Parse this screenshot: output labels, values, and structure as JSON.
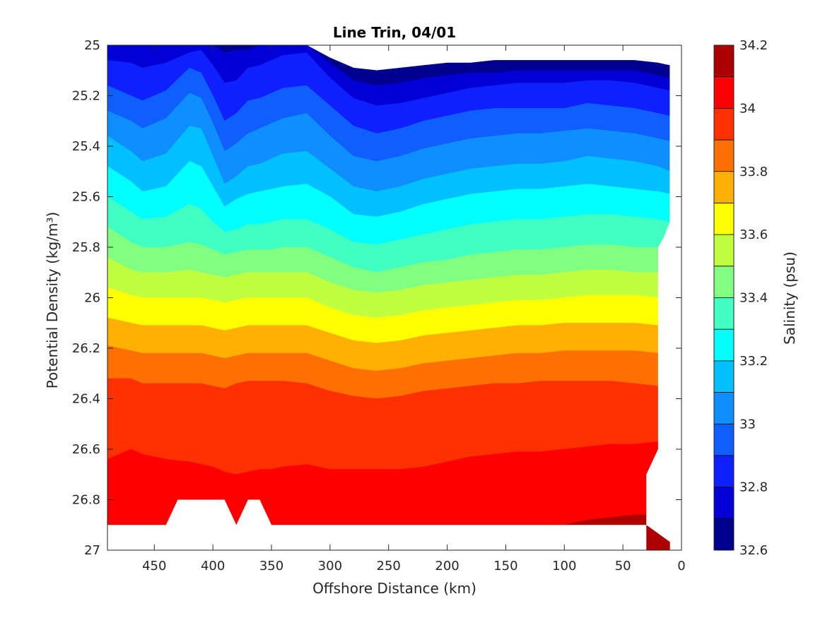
{
  "chart_data": {
    "type": "contour",
    "title": "Line Trin, 04/01",
    "xlabel": "Offshore Distance (km)",
    "ylabel": "Potential Density (kg/m³)",
    "x_reversed": true,
    "y_reversed": true,
    "xlim": [
      0,
      490
    ],
    "ylim": [
      25,
      27
    ],
    "xticks": [
      "450",
      "400",
      "350",
      "300",
      "250",
      "200",
      "150",
      "100",
      "50",
      "0"
    ],
    "yticks": [
      "25",
      "25.2",
      "25.4",
      "25.6",
      "25.8",
      "26",
      "26.2",
      "26.4",
      "26.6",
      "26.8",
      "27"
    ],
    "colorbar_label": "Salinity (psu)",
    "colorbar_ticks": [
      "34.2",
      "34",
      "33.8",
      "33.6",
      "33.4",
      "33.2",
      "33",
      "32.8",
      "32.6"
    ],
    "levels": [
      32.6,
      32.7,
      32.8,
      32.9,
      33.0,
      33.1,
      33.2,
      33.3,
      33.4,
      33.5,
      33.6,
      33.7,
      33.8,
      33.9,
      34.0,
      34.1,
      34.2
    ],
    "colors": [
      "#00008f",
      "#0000d6",
      "#0f20ff",
      "#0f5fff",
      "#0f8fff",
      "#00c0ff",
      "#00ffff",
      "#40ffc0",
      "#80ff80",
      "#c0ff40",
      "#ffff00",
      "#ffb000",
      "#ff7000",
      "#ff3000",
      "#ff0000",
      "#ad0000"
    ],
    "interface_x": [
      490,
      470,
      460,
      440,
      420,
      410,
      400,
      390,
      380,
      370,
      360,
      350,
      340,
      320,
      300,
      280,
      260,
      240,
      220,
      200,
      180,
      160,
      140,
      120,
      100,
      80,
      60,
      40,
      20,
      10
    ],
    "interfaces": [
      [
        25.0,
        25.0,
        25.0,
        25.0,
        25.0,
        25.0,
        25.0,
        25.0,
        25.0,
        25.0,
        25.0,
        25.0,
        25.0,
        25.0,
        25.05,
        25.09,
        25.1,
        25.09,
        25.08,
        25.07,
        25.07,
        25.06,
        25.06,
        25.06,
        25.06,
        25.06,
        25.06,
        25.06,
        25.07,
        25.08
      ],
      [
        25.0,
        25.0,
        25.0,
        25.0,
        25.0,
        25.0,
        25.0,
        25.03,
        25.02,
        25.02,
        25.0,
        25.0,
        25.0,
        25.0,
        25.07,
        25.14,
        25.16,
        25.15,
        25.13,
        25.12,
        25.11,
        25.11,
        25.1,
        25.1,
        25.1,
        25.1,
        25.1,
        25.1,
        25.12,
        25.13
      ],
      [
        25.06,
        25.07,
        25.09,
        25.07,
        25.03,
        25.02,
        25.08,
        25.15,
        25.14,
        25.09,
        25.08,
        25.06,
        25.04,
        25.03,
        25.13,
        25.21,
        25.24,
        25.23,
        25.21,
        25.19,
        25.17,
        25.16,
        25.15,
        25.15,
        25.15,
        25.14,
        25.14,
        25.15,
        25.17,
        25.18
      ],
      [
        25.16,
        25.2,
        25.22,
        25.18,
        25.09,
        25.11,
        25.2,
        25.3,
        25.27,
        25.22,
        25.21,
        25.19,
        25.17,
        25.16,
        25.24,
        25.32,
        25.35,
        25.33,
        25.3,
        25.28,
        25.26,
        25.25,
        25.25,
        25.25,
        25.25,
        25.23,
        25.24,
        25.25,
        25.27,
        25.28
      ],
      [
        25.26,
        25.3,
        25.33,
        25.29,
        25.19,
        25.21,
        25.31,
        25.42,
        25.39,
        25.35,
        25.33,
        25.31,
        25.29,
        25.27,
        25.36,
        25.44,
        25.46,
        25.44,
        25.41,
        25.39,
        25.37,
        25.36,
        25.35,
        25.35,
        25.34,
        25.33,
        25.34,
        25.35,
        25.37,
        25.38
      ],
      [
        25.36,
        25.42,
        25.46,
        25.43,
        25.32,
        25.33,
        25.44,
        25.55,
        25.52,
        25.48,
        25.47,
        25.45,
        25.43,
        25.42,
        25.49,
        25.56,
        25.58,
        25.56,
        25.53,
        25.51,
        25.49,
        25.48,
        25.47,
        25.47,
        25.46,
        25.44,
        25.45,
        25.46,
        25.48,
        25.5
      ],
      [
        25.48,
        25.54,
        25.58,
        25.56,
        25.46,
        25.48,
        25.56,
        25.64,
        25.61,
        25.59,
        25.58,
        25.57,
        25.56,
        25.55,
        25.6,
        25.67,
        25.68,
        25.66,
        25.63,
        25.61,
        25.59,
        25.58,
        25.57,
        25.57,
        25.56,
        25.55,
        25.56,
        25.57,
        25.58,
        25.59
      ],
      [
        25.6,
        25.66,
        25.69,
        25.68,
        25.63,
        25.65,
        25.7,
        25.74,
        25.73,
        25.71,
        25.71,
        25.7,
        25.69,
        25.69,
        25.73,
        25.78,
        25.79,
        25.77,
        25.75,
        25.73,
        25.71,
        25.7,
        25.69,
        25.69,
        25.68,
        25.67,
        25.67,
        25.68,
        25.69,
        25.7
      ],
      [
        25.72,
        25.78,
        25.8,
        25.8,
        25.78,
        25.79,
        25.81,
        25.83,
        25.82,
        25.81,
        25.81,
        25.81,
        25.8,
        25.8,
        25.84,
        25.88,
        25.9,
        25.88,
        25.86,
        25.85,
        25.83,
        25.82,
        25.81,
        25.81,
        25.8,
        25.79,
        25.79,
        25.8,
        25.8,
        25.8
      ],
      [
        25.84,
        25.89,
        25.9,
        25.9,
        25.89,
        25.9,
        25.91,
        25.92,
        25.91,
        25.9,
        25.9,
        25.9,
        25.9,
        25.9,
        25.94,
        25.97,
        25.98,
        25.97,
        25.95,
        25.94,
        25.93,
        25.92,
        25.91,
        25.91,
        25.9,
        25.89,
        25.89,
        25.9,
        25.9,
        25.9
      ],
      [
        25.96,
        25.99,
        26.0,
        26.0,
        26.0,
        26.0,
        26.01,
        26.02,
        26.01,
        26.0,
        26.0,
        26.0,
        26.0,
        26.0,
        26.04,
        26.07,
        26.08,
        26.07,
        26.05,
        26.04,
        26.03,
        26.02,
        26.01,
        26.01,
        26.0,
        25.99,
        25.99,
        25.99,
        26.0,
        26.0
      ],
      [
        26.08,
        26.1,
        26.11,
        26.11,
        26.11,
        26.11,
        26.12,
        26.13,
        26.12,
        26.11,
        26.11,
        26.11,
        26.11,
        26.11,
        26.14,
        26.17,
        26.18,
        26.17,
        26.15,
        26.14,
        26.13,
        26.12,
        26.11,
        26.11,
        26.1,
        26.1,
        26.1,
        26.1,
        26.11,
        26.11
      ],
      [
        26.19,
        26.21,
        26.22,
        26.22,
        26.22,
        26.22,
        26.23,
        26.24,
        26.23,
        26.22,
        26.22,
        26.22,
        26.22,
        26.22,
        26.25,
        26.28,
        26.29,
        26.28,
        26.26,
        26.25,
        26.24,
        26.23,
        26.22,
        26.22,
        26.21,
        26.21,
        26.21,
        26.21,
        26.22,
        26.22
      ],
      [
        26.32,
        26.32,
        26.34,
        26.34,
        26.34,
        26.34,
        26.35,
        26.36,
        26.34,
        26.33,
        26.33,
        26.33,
        26.33,
        26.34,
        26.37,
        26.39,
        26.4,
        26.39,
        26.37,
        26.36,
        26.35,
        26.34,
        26.34,
        26.33,
        26.33,
        26.33,
        26.33,
        26.34,
        26.35,
        26.35
      ],
      [
        26.64,
        26.6,
        26.62,
        26.64,
        26.65,
        26.66,
        26.67,
        26.69,
        26.7,
        26.69,
        26.68,
        26.68,
        26.67,
        26.66,
        26.68,
        26.68,
        26.68,
        26.68,
        26.67,
        26.65,
        26.63,
        26.62,
        26.61,
        26.61,
        26.6,
        26.59,
        26.58,
        26.58,
        26.57,
        26.57
      ],
      [
        26.9,
        26.9,
        26.9,
        26.9,
        26.9,
        26.9,
        26.9,
        26.9,
        26.9,
        26.9,
        26.9,
        26.9,
        26.9,
        26.9,
        26.9,
        26.9,
        26.9,
        26.9,
        26.9,
        26.9,
        26.9,
        26.9,
        26.9,
        26.9,
        26.9,
        26.88,
        26.87,
        26.86,
        26.86,
        26.86
      ]
    ],
    "data_boundary_right": [
      [
        10,
        25.0
      ],
      [
        10,
        25.7
      ],
      [
        15,
        25.76
      ],
      [
        20,
        25.8
      ],
      [
        20,
        26.6
      ],
      [
        30,
        26.7
      ],
      [
        30,
        26.9
      ]
    ],
    "data_boundary_bottom": [
      [
        30,
        26.9
      ],
      [
        350,
        26.9
      ],
      [
        360,
        26.8
      ],
      [
        370,
        26.8
      ],
      [
        380,
        26.9
      ],
      [
        390,
        26.8
      ],
      [
        430,
        26.8
      ],
      [
        440,
        26.9
      ],
      [
        490,
        26.9
      ]
    ],
    "grid": false
  }
}
